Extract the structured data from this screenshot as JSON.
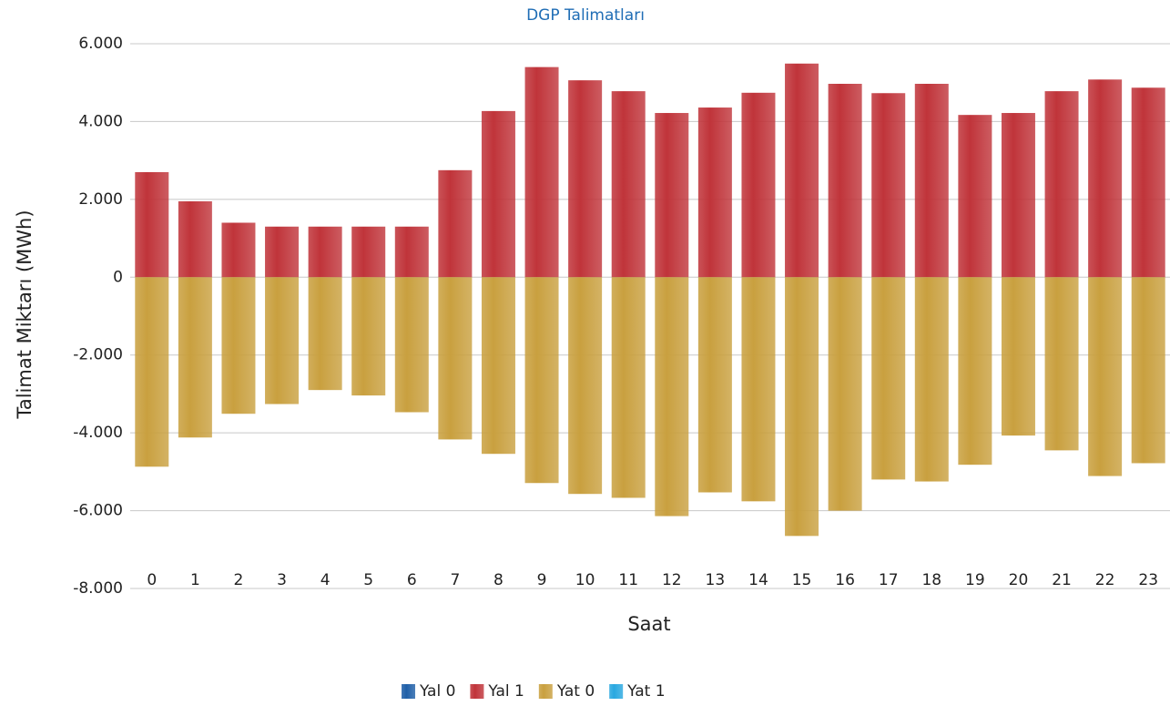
{
  "chart_data": {
    "type": "bar",
    "stacked": true,
    "title": "DGP Talimatları",
    "x_label": "Saat",
    "y_label": "Talimat Miktarı (MWh)",
    "categories": [
      "0",
      "1",
      "2",
      "3",
      "4",
      "5",
      "6",
      "7",
      "8",
      "9",
      "10",
      "11",
      "12",
      "13",
      "14",
      "15",
      "16",
      "17",
      "18",
      "19",
      "20",
      "21",
      "22",
      "23"
    ],
    "series": [
      {
        "name": "Yal 0",
        "color": "#1f5fa8",
        "values": [
          0,
          0,
          0,
          0,
          0,
          0,
          0,
          0,
          0,
          0,
          0,
          0,
          0,
          0,
          0,
          0,
          0,
          0,
          0,
          0,
          0,
          0,
          0,
          0
        ]
      },
      {
        "name": "Yal 1",
        "color": "#c0343a",
        "values": [
          2700,
          1950,
          1400,
          1300,
          1300,
          1300,
          1300,
          2750,
          4270,
          5400,
          5060,
          4780,
          4220,
          4360,
          4740,
          5490,
          4970,
          4730,
          4970,
          4170,
          4220,
          4780,
          5080,
          4870
        ]
      },
      {
        "name": "Yat 0",
        "color": "#c9a03f",
        "values": [
          -4870,
          -4120,
          -3510,
          -3260,
          -2900,
          -3040,
          -3470,
          -4170,
          -4540,
          -5290,
          -5570,
          -5670,
          -6140,
          -5530,
          -5760,
          -6650,
          -6000,
          -5200,
          -5250,
          -4820,
          -4070,
          -4450,
          -5110,
          -4780
        ]
      },
      {
        "name": "Yat 1",
        "color": "#29a8e0",
        "values": [
          0,
          0,
          0,
          0,
          0,
          0,
          0,
          0,
          0,
          0,
          0,
          0,
          0,
          0,
          0,
          0,
          0,
          0,
          0,
          0,
          0,
          0,
          0,
          0
        ]
      }
    ],
    "ylim": [
      -8000,
      6000
    ],
    "yticks": [
      {
        "value": -8000,
        "label": "-8.000"
      },
      {
        "value": -6000,
        "label": "-6.000"
      },
      {
        "value": -4000,
        "label": "-4.000"
      },
      {
        "value": -2000,
        "label": "-2.000"
      },
      0,
      {
        "value": 2000,
        "label": "2.000"
      },
      {
        "value": 4000,
        "label": "4.000"
      },
      {
        "value": 6000,
        "label": "6.000"
      }
    ],
    "grid": true,
    "legend": "bottom"
  }
}
